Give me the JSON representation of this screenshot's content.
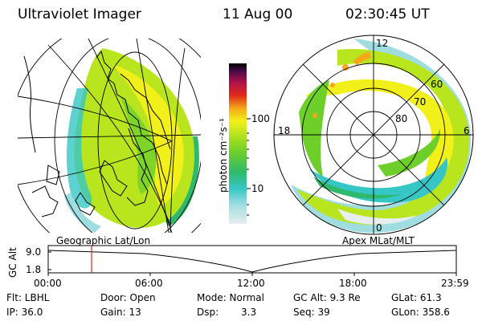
{
  "header": {
    "title": "Ultraviolet Imager",
    "date": "11 Aug 00",
    "time": "02:30:45 UT"
  },
  "colorbar": {
    "unit_label": "photon cm⁻²s⁻¹",
    "ticks": [
      "100",
      "10"
    ]
  },
  "left_panel": {
    "label": "Geographic Lat/Lon"
  },
  "right_panel": {
    "label": "Apex MLat/MLT",
    "mlt_labels": [
      "12",
      "18",
      "6",
      "0"
    ],
    "lat_labels": [
      "60",
      "70",
      "80"
    ]
  },
  "altitude_plot": {
    "axis_label": "GC Alt",
    "y_ticks": [
      "9.0",
      "1.8"
    ],
    "x_ticks": [
      "00:00",
      "06:00",
      "12:00",
      "18:00",
      "23:59"
    ]
  },
  "status": {
    "row1": {
      "flt": "Flt: LBHL",
      "door": "Door: Open",
      "mode": "Mode: Normal",
      "gc_alt": "GC Alt: 9.3 Re",
      "glat": "GLat: 61.3"
    },
    "row2": {
      "ip": "IP: 36.0",
      "gain": "Gain: 13",
      "dsp_label": "Dsp:",
      "dsp_value": "3.3",
      "seq": "Seq: 39",
      "glon": "GLon: 358.6"
    }
  },
  "colors": {
    "cursor": "#dd2222",
    "palette": [
      "#e8eef0",
      "#9fdde0",
      "#36c6c6",
      "#2fb96b",
      "#6fcf2a",
      "#b9e51e",
      "#f2f01a",
      "#f5a818",
      "#e02a1a",
      "#b0124a",
      "#4a0a4a",
      "#000000"
    ]
  }
}
